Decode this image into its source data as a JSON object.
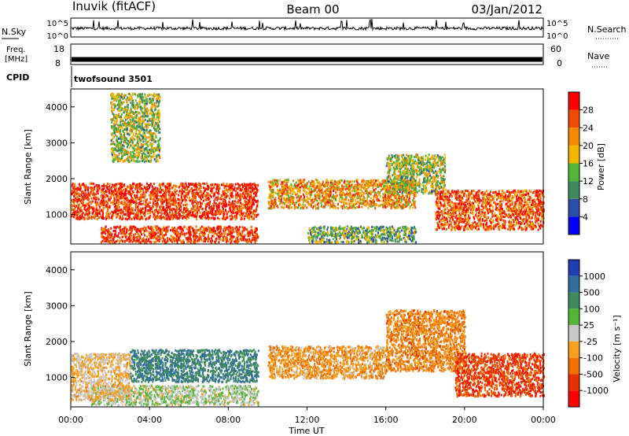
{
  "header": {
    "station": "Inuvik (fitACF)",
    "beam": "Beam 00",
    "date": "03/Jan/2012"
  },
  "noise_panel": {
    "left_label": "N.Sky",
    "right_label": "N.Search",
    "left_ticks": [
      "10^5",
      "10^0"
    ],
    "right_ticks": [
      "10^5",
      "10^0"
    ]
  },
  "freq_panel": {
    "left_label_line1": "Freq.",
    "left_label_line2": "[MHz]",
    "right_label": "Nave",
    "left_ticks": [
      "18",
      "8"
    ],
    "right_ticks": [
      "60",
      "0"
    ],
    "freq_value": 10.5
  },
  "cpid": {
    "label": "CPID",
    "text": "twofsound 3501"
  },
  "x_axis": {
    "label": "Time UT",
    "ticks": [
      "00:00",
      "04:00",
      "08:00",
      "12:00",
      "16:00",
      "20:00",
      "00:00"
    ]
  },
  "power_panel": {
    "ylabel": "Slant Range [km]",
    "yticks": [
      "1000",
      "2000",
      "3000",
      "4000"
    ],
    "colorbar_label": "Power [dB]",
    "colorbar_ticks": [
      "4",
      "8",
      "12",
      "16",
      "20",
      "24",
      "28"
    ],
    "colors": [
      "#0000ff",
      "#2b4fa8",
      "#3d8a5a",
      "#55b53a",
      "#f7b500",
      "#f58a00",
      "#ef4a00",
      "#ff0000"
    ]
  },
  "velocity_panel": {
    "ylabel": "Slant Range [km]",
    "yticks": [
      "1000",
      "2000",
      "3000",
      "4000"
    ],
    "colorbar_label": "Velocity [m s⁻¹]",
    "colorbar_ticks": [
      "1000",
      "500",
      "100",
      "25",
      "-25",
      "-100",
      "-500",
      "-1000"
    ],
    "colors": [
      "#1f3fb3",
      "#2f6fa0",
      "#3d8a5a",
      "#55b53a",
      "#c8c8c8",
      "#f7a020",
      "#f07000",
      "#e83000",
      "#ff0000"
    ]
  },
  "chart_data": [
    {
      "type": "heatmap",
      "title": "Power",
      "xlabel": "Time UT",
      "ylabel": "Slant Range [km]",
      "xlim": [
        "00:00",
        "24:00"
      ],
      "ylim": [
        180,
        4500
      ],
      "colorbar": {
        "label": "Power [dB]",
        "range": [
          0,
          30
        ],
        "ticks": [
          4,
          8,
          12,
          16,
          20,
          24,
          28
        ]
      },
      "regions": [
        {
          "t_start": 0.0,
          "t_end": 9.5,
          "r_start": 900,
          "r_end": 1900,
          "value_db": 26
        },
        {
          "t_start": 1.5,
          "t_end": 9.5,
          "r_start": 250,
          "r_end": 700,
          "value_db": 26
        },
        {
          "t_start": 10.0,
          "t_end": 17.5,
          "r_start": 1200,
          "r_end": 2000,
          "value_db": 20
        },
        {
          "t_start": 12.0,
          "t_end": 17.5,
          "r_start": 250,
          "r_end": 700,
          "value_db": 12
        },
        {
          "t_start": 16.0,
          "t_end": 19.0,
          "r_start": 1600,
          "r_end": 2700,
          "value_db": 14
        },
        {
          "t_start": 18.5,
          "t_end": 24.0,
          "r_start": 600,
          "r_end": 1700,
          "value_db": 24
        },
        {
          "t_start": 2.0,
          "t_end": 4.5,
          "r_start": 2500,
          "r_end": 4400,
          "value_db": 14
        }
      ]
    },
    {
      "type": "heatmap",
      "title": "Velocity",
      "xlabel": "Time UT",
      "ylabel": "Slant Range [km]",
      "xlim": [
        "00:00",
        "24:00"
      ],
      "ylim": [
        180,
        4500
      ],
      "colorbar": {
        "label": "Velocity [m s⁻¹]",
        "ticks": [
          1000,
          500,
          100,
          25,
          -25,
          -100,
          -500,
          -1000
        ]
      },
      "regions": [
        {
          "t_start": 3.0,
          "t_end": 9.5,
          "r_start": 900,
          "r_end": 1800,
          "value_ms": 600
        },
        {
          "t_start": 1.0,
          "t_end": 9.5,
          "r_start": 250,
          "r_end": 800,
          "value_ms": 80
        },
        {
          "t_start": 0.0,
          "t_end": 3.0,
          "r_start": 400,
          "r_end": 1700,
          "value_ms": -150
        },
        {
          "t_start": 10.0,
          "t_end": 16.0,
          "r_start": 1000,
          "r_end": 1900,
          "value_ms": -300
        },
        {
          "t_start": 16.0,
          "t_end": 20.0,
          "r_start": 1200,
          "r_end": 2900,
          "value_ms": -400
        },
        {
          "t_start": 19.5,
          "t_end": 24.0,
          "r_start": 500,
          "r_end": 1700,
          "value_ms": -700
        }
      ]
    }
  ]
}
